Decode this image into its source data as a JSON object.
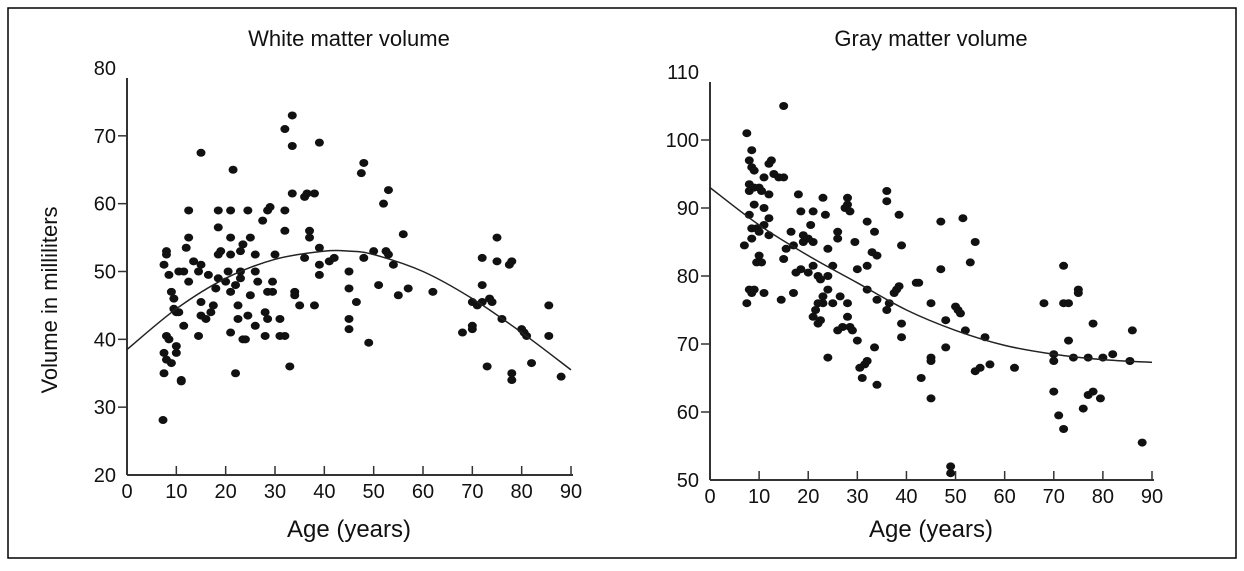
{
  "chart_data": [
    {
      "type": "scatter",
      "title": "White matter volume",
      "xlabel": "Age (years)",
      "ylabel": "Volume in milliliters",
      "xlim": [
        0,
        90
      ],
      "ylim": [
        20,
        80
      ],
      "xticks": [
        "0",
        "10",
        "20",
        "30",
        "40",
        "50",
        "60",
        "70",
        "80",
        "90"
      ],
      "yticks": [
        "20",
        "30",
        "40",
        "50",
        "60",
        "70",
        "80"
      ],
      "grid": false,
      "points": [
        [
          7.3,
          28.1
        ],
        [
          7.5,
          51
        ],
        [
          8,
          53
        ],
        [
          8,
          52.5
        ],
        [
          8.5,
          49.5
        ],
        [
          9,
          47
        ],
        [
          9.5,
          46
        ],
        [
          10,
          44
        ],
        [
          10.5,
          44
        ],
        [
          9.5,
          44.5
        ],
        [
          8,
          40.5
        ],
        [
          8.5,
          40
        ],
        [
          7.5,
          38
        ],
        [
          8,
          37
        ],
        [
          9,
          36.5
        ],
        [
          10,
          38
        ],
        [
          10,
          39
        ],
        [
          7.5,
          35
        ],
        [
          11,
          34
        ],
        [
          11,
          33.8
        ],
        [
          10.5,
          50
        ],
        [
          11.5,
          50
        ],
        [
          12,
          53.5
        ],
        [
          12.5,
          55
        ],
        [
          12.5,
          59
        ],
        [
          12.5,
          48.5
        ],
        [
          11.5,
          42
        ],
        [
          13.5,
          51.5
        ],
        [
          14.5,
          50
        ],
        [
          15,
          51
        ],
        [
          15,
          67.5
        ],
        [
          15,
          45.5
        ],
        [
          15,
          43.5
        ],
        [
          14.5,
          40.5
        ],
        [
          16,
          43
        ],
        [
          17,
          44
        ],
        [
          17.5,
          45
        ],
        [
          16.5,
          49.5
        ],
        [
          18,
          47.5
        ],
        [
          18.5,
          49
        ],
        [
          18.5,
          52.5
        ],
        [
          18.5,
          56.5
        ],
        [
          18.5,
          59
        ],
        [
          19,
          53
        ],
        [
          20,
          48.5
        ],
        [
          20.5,
          50
        ],
        [
          21,
          47
        ],
        [
          21,
          55
        ],
        [
          21,
          52.5
        ],
        [
          21,
          59
        ],
        [
          21.5,
          65
        ],
        [
          21,
          41
        ],
        [
          22,
          35
        ],
        [
          22,
          48
        ],
        [
          22.5,
          45
        ],
        [
          22.5,
          43
        ],
        [
          23,
          50
        ],
        [
          23,
          49
        ],
        [
          23,
          53
        ],
        [
          23.5,
          54
        ],
        [
          23.5,
          40
        ],
        [
          24,
          40
        ],
        [
          24.5,
          43.5
        ],
        [
          24.5,
          59
        ],
        [
          25,
          55
        ],
        [
          25,
          46.5
        ],
        [
          26,
          52.5
        ],
        [
          26,
          50
        ],
        [
          26,
          42
        ],
        [
          26.5,
          48.5
        ],
        [
          27.5,
          57.5
        ],
        [
          28,
          44
        ],
        [
          28,
          40.5
        ],
        [
          28.5,
          43
        ],
        [
          28.5,
          47
        ],
        [
          28.5,
          59
        ],
        [
          29,
          59.5
        ],
        [
          29.5,
          47
        ],
        [
          29.5,
          48.5
        ],
        [
          30,
          52.5
        ],
        [
          31,
          43
        ],
        [
          31,
          40.5
        ],
        [
          32,
          40.5
        ],
        [
          32,
          59
        ],
        [
          32,
          56
        ],
        [
          32,
          71
        ],
        [
          33,
          36
        ],
        [
          33.5,
          73
        ],
        [
          33.5,
          68.5
        ],
        [
          33.5,
          61.5
        ],
        [
          34,
          47
        ],
        [
          34,
          46.5
        ],
        [
          35,
          45
        ],
        [
          36,
          61
        ],
        [
          36,
          52
        ],
        [
          36.5,
          61.5
        ],
        [
          37,
          56
        ],
        [
          37,
          55
        ],
        [
          38,
          61.5
        ],
        [
          38,
          45
        ],
        [
          39,
          69
        ],
        [
          39,
          53.5
        ],
        [
          39,
          51
        ],
        [
          39,
          49.5
        ],
        [
          41,
          51.5
        ],
        [
          42,
          52
        ],
        [
          45,
          50
        ],
        [
          45,
          47.5
        ],
        [
          45,
          43
        ],
        [
          45,
          41.5
        ],
        [
          46.5,
          45.5
        ],
        [
          47.5,
          64.5
        ],
        [
          48,
          66
        ],
        [
          48,
          52
        ],
        [
          49,
          39.5
        ],
        [
          50,
          53
        ],
        [
          51,
          48
        ],
        [
          52,
          60
        ],
        [
          52.5,
          53
        ],
        [
          53,
          62
        ],
        [
          53,
          52.5
        ],
        [
          54,
          51
        ],
        [
          55,
          46.5
        ],
        [
          56,
          55.5
        ],
        [
          57,
          47.5
        ],
        [
          62,
          47
        ],
        [
          68,
          41
        ],
        [
          70,
          42
        ],
        [
          70,
          41.5
        ],
        [
          70,
          45.5
        ],
        [
          71,
          45
        ],
        [
          72,
          45.5
        ],
        [
          72,
          52
        ],
        [
          72,
          48
        ],
        [
          73,
          36
        ],
        [
          73.5,
          46
        ],
        [
          74,
          45.5
        ],
        [
          75,
          55
        ],
        [
          75,
          51.5
        ],
        [
          76,
          43
        ],
        [
          77.5,
          51
        ],
        [
          78,
          51.5
        ],
        [
          78,
          35
        ],
        [
          78,
          34
        ],
        [
          80,
          41.5
        ],
        [
          80.5,
          41
        ],
        [
          81,
          40.5
        ],
        [
          82,
          36.5
        ],
        [
          85.5,
          45
        ],
        [
          85.5,
          40.5
        ],
        [
          88,
          34.5
        ]
      ],
      "fit_curve": [
        [
          0,
          38.5
        ],
        [
          10,
          44.5
        ],
        [
          20,
          49
        ],
        [
          30,
          51.8
        ],
        [
          40,
          53
        ],
        [
          45,
          53
        ],
        [
          50,
          52.5
        ],
        [
          60,
          50
        ],
        [
          70,
          46
        ],
        [
          80,
          41
        ],
        [
          90,
          35.5
        ]
      ]
    },
    {
      "type": "scatter",
      "title": "Gray matter volume",
      "xlabel": "Age (years)",
      "ylabel": "",
      "xlim": [
        0,
        90
      ],
      "ylim": [
        50,
        110
      ],
      "xticks": [
        "0",
        "10",
        "20",
        "30",
        "40",
        "50",
        "60",
        "70",
        "80",
        "90"
      ],
      "yticks": [
        "50",
        "60",
        "70",
        "80",
        "90",
        "100",
        "110"
      ],
      "grid": false,
      "points": [
        [
          7.5,
          101
        ],
        [
          8.5,
          98.5
        ],
        [
          8,
          97
        ],
        [
          8.5,
          96
        ],
        [
          9,
          95.5
        ],
        [
          8,
          93.5
        ],
        [
          8,
          92.5
        ],
        [
          9,
          93
        ],
        [
          10,
          93
        ],
        [
          10.5,
          92.5
        ],
        [
          11,
          94.5
        ],
        [
          9,
          90.5
        ],
        [
          8,
          89
        ],
        [
          8.5,
          87
        ],
        [
          9.5,
          87
        ],
        [
          10,
          86.5
        ],
        [
          11,
          87.5
        ],
        [
          12,
          88.5
        ],
        [
          11,
          90
        ],
        [
          12,
          92
        ],
        [
          12,
          96.5
        ],
        [
          12.5,
          97
        ],
        [
          13,
          95
        ],
        [
          14,
          94.5
        ],
        [
          15,
          94.5
        ],
        [
          15,
          105
        ],
        [
          10,
          83
        ],
        [
          10.5,
          82
        ],
        [
          9.5,
          82
        ],
        [
          7,
          84.5
        ],
        [
          8.5,
          85.5
        ],
        [
          12,
          86
        ],
        [
          8,
          78
        ],
        [
          9,
          78
        ],
        [
          8.5,
          77.5
        ],
        [
          11,
          77.5
        ],
        [
          7.5,
          76
        ],
        [
          14.5,
          76.5
        ],
        [
          15,
          82.5
        ],
        [
          15.5,
          84
        ],
        [
          16.5,
          86.5
        ],
        [
          17,
          84.5
        ],
        [
          17,
          77.5
        ],
        [
          17.5,
          80.5
        ],
        [
          18.5,
          81
        ],
        [
          18,
          92
        ],
        [
          18.5,
          89.5
        ],
        [
          19,
          85
        ],
        [
          19,
          86
        ],
        [
          20,
          85.5
        ],
        [
          20.5,
          87.5
        ],
        [
          21,
          89.5
        ],
        [
          21,
          85
        ],
        [
          20,
          80.5
        ],
        [
          21,
          81.5
        ],
        [
          22,
          80
        ],
        [
          22.5,
          79.5
        ],
        [
          22,
          76
        ],
        [
          21.5,
          75
        ],
        [
          21,
          74
        ],
        [
          22,
          73
        ],
        [
          22.5,
          73.5
        ],
        [
          23,
          77
        ],
        [
          23,
          76
        ],
        [
          23,
          91.5
        ],
        [
          23.5,
          89
        ],
        [
          24,
          84
        ],
        [
          24,
          80
        ],
        [
          24,
          78
        ],
        [
          24,
          68
        ],
        [
          25,
          76
        ],
        [
          25,
          81.5
        ],
        [
          26,
          86.5
        ],
        [
          26,
          85.5
        ],
        [
          26,
          72
        ],
        [
          26.5,
          77
        ],
        [
          27,
          72.5
        ],
        [
          27.5,
          90
        ],
        [
          28,
          90.5
        ],
        [
          28,
          91.5
        ],
        [
          28.5,
          89.5
        ],
        [
          28,
          76
        ],
        [
          28,
          74
        ],
        [
          28.5,
          72.5
        ],
        [
          29,
          72
        ],
        [
          29.5,
          85
        ],
        [
          30,
          70.5
        ],
        [
          30,
          81
        ],
        [
          30.5,
          66.5
        ],
        [
          31,
          65
        ],
        [
          31.5,
          67
        ],
        [
          32,
          67.5
        ],
        [
          32,
          88
        ],
        [
          32,
          81.5
        ],
        [
          32,
          78
        ],
        [
          33.5,
          69.5
        ],
        [
          33.5,
          86.5
        ],
        [
          33,
          83.5
        ],
        [
          34,
          83
        ],
        [
          34,
          76.5
        ],
        [
          34,
          64
        ],
        [
          36,
          75
        ],
        [
          36,
          92.5
        ],
        [
          36,
          91
        ],
        [
          36.5,
          76
        ],
        [
          37.5,
          77.5
        ],
        [
          38,
          78
        ],
        [
          38.5,
          89
        ],
        [
          38.5,
          78.5
        ],
        [
          39,
          84.5
        ],
        [
          39,
          71
        ],
        [
          39,
          73
        ],
        [
          42,
          79
        ],
        [
          42.5,
          79
        ],
        [
          43,
          65
        ],
        [
          45,
          76
        ],
        [
          45,
          68
        ],
        [
          45,
          67.5
        ],
        [
          45,
          62
        ],
        [
          47,
          81
        ],
        [
          47,
          88
        ],
        [
          48,
          73.5
        ],
        [
          48,
          69.5
        ],
        [
          49,
          52
        ],
        [
          49,
          51
        ],
        [
          50,
          75.5
        ],
        [
          50.5,
          75
        ],
        [
          51,
          74.5
        ],
        [
          51.5,
          88.5
        ],
        [
          52,
          72
        ],
        [
          53,
          82
        ],
        [
          54,
          85
        ],
        [
          54,
          66
        ],
        [
          55,
          66.5
        ],
        [
          56,
          71
        ],
        [
          57,
          67
        ],
        [
          62,
          66.5
        ],
        [
          68,
          76
        ],
        [
          70,
          68.5
        ],
        [
          70,
          67.5
        ],
        [
          70,
          63
        ],
        [
          71,
          59.5
        ],
        [
          72,
          81.5
        ],
        [
          72,
          76
        ],
        [
          72,
          57.5
        ],
        [
          73,
          76
        ],
        [
          73,
          70.5
        ],
        [
          74,
          68
        ],
        [
          75,
          78
        ],
        [
          75,
          77.5
        ],
        [
          76,
          60.5
        ],
        [
          77,
          62.5
        ],
        [
          77,
          68
        ],
        [
          78,
          73
        ],
        [
          78,
          63
        ],
        [
          79.5,
          62
        ],
        [
          80,
          68
        ],
        [
          82,
          68.5
        ],
        [
          85.5,
          67.5
        ],
        [
          86,
          72
        ],
        [
          88,
          55.5
        ]
      ],
      "fit_curve": [
        [
          0,
          93
        ],
        [
          10,
          87.5
        ],
        [
          20,
          83
        ],
        [
          30,
          79
        ],
        [
          40,
          75
        ],
        [
          50,
          72
        ],
        [
          60,
          69.8
        ],
        [
          70,
          68.5
        ],
        [
          80,
          67.7
        ],
        [
          90,
          67.3
        ]
      ]
    }
  ]
}
